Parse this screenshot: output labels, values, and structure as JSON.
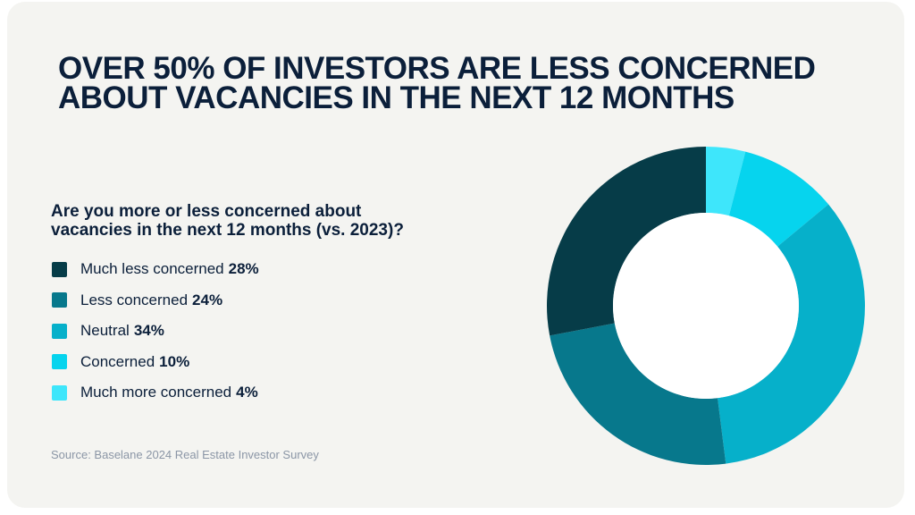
{
  "title_lines": [
    "OVER 50% OF INVESTORS ARE LESS CONCERNED",
    "ABOUT VACANCIES IN THE NEXT 12 MONTHS"
  ],
  "question_lines": [
    "Are you more or less concerned about",
    "vacancies in the next 12 months (vs. 2023)?"
  ],
  "source": "Source: Baselane 2024 Real Estate Investor Survey",
  "chart_data": {
    "type": "pie",
    "donut": true,
    "categories": [
      "Much less concerned",
      "Less concerned",
      "Neutral",
      "Concerned",
      "Much more concerned"
    ],
    "values": [
      28,
      24,
      34,
      10,
      4
    ],
    "value_labels": [
      "28%",
      "24%",
      "34%",
      "10%",
      "4%"
    ],
    "unit": "%",
    "colors": [
      "#063c48",
      "#07788c",
      "#06b0ca",
      "#06d4ee",
      "#3ee6fb"
    ],
    "legend_position": "left",
    "start_angle_deg": 0,
    "direction": "clockwise",
    "drawing_order": [
      4,
      3,
      2,
      1,
      0
    ]
  }
}
